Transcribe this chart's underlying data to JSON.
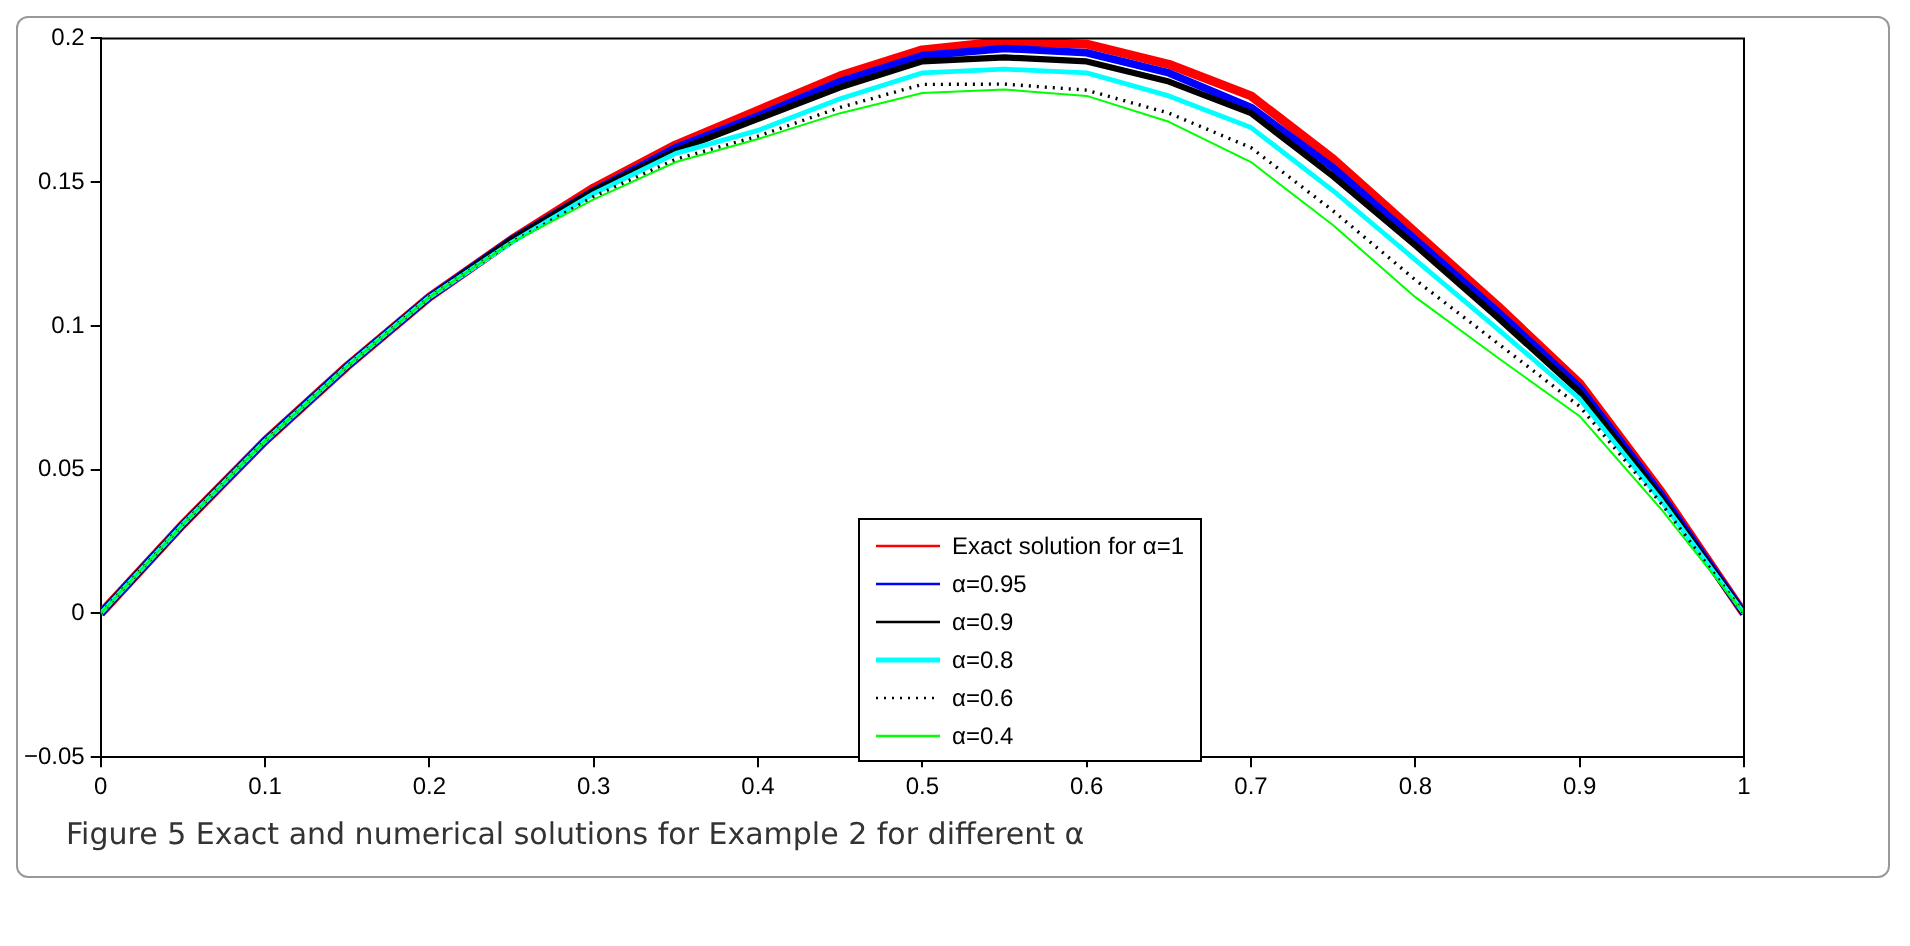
{
  "chart_data": {
    "type": "line",
    "x": [
      0,
      0.05,
      0.1,
      0.15,
      0.2,
      0.25,
      0.3,
      0.35,
      0.4,
      0.45,
      0.5,
      0.55,
      0.6,
      0.65,
      0.7,
      0.75,
      0.8,
      0.85,
      0.9,
      0.95,
      1
    ],
    "series": [
      {
        "name": "Exact solution for α=1",
        "color": "#ff0000",
        "values": [
          0,
          0.031,
          0.06,
          0.086,
          0.11,
          0.13,
          0.148,
          0.163,
          0.175,
          0.187,
          0.196,
          0.199,
          0.198,
          0.191,
          0.18,
          0.158,
          0.1325,
          0.107,
          0.08,
          0.042,
          0
        ]
      },
      {
        "name": "α=0.95",
        "color": "#0000ff",
        "values": [
          0,
          0.031,
          0.06,
          0.086,
          0.11,
          0.13,
          0.147,
          0.162,
          0.173,
          0.185,
          0.194,
          0.1965,
          0.195,
          0.188,
          0.176,
          0.155,
          0.13,
          0.105,
          0.0786,
          0.041,
          0
        ]
      },
      {
        "name": "α=0.9",
        "color": "#000000",
        "values": [
          0,
          0.031,
          0.06,
          0.086,
          0.11,
          0.13,
          0.147,
          0.161,
          0.172,
          0.183,
          0.192,
          0.1934,
          0.192,
          0.185,
          0.174,
          0.152,
          0.128,
          0.103,
          0.077,
          0.04,
          0
        ]
      },
      {
        "name": "α=0.8",
        "color": "#00ffff",
        "values": [
          0,
          0.031,
          0.06,
          0.086,
          0.11,
          0.129,
          0.146,
          0.16,
          0.168,
          0.179,
          0.188,
          0.1893,
          0.188,
          0.18,
          0.169,
          0.147,
          0.123,
          0.099,
          0.0746,
          0.039,
          0
        ]
      },
      {
        "name": "α=0.6",
        "color": "#000000",
        "line_style": "dotted",
        "values": [
          0,
          0.031,
          0.06,
          0.086,
          0.11,
          0.129,
          0.145,
          0.158,
          0.166,
          0.176,
          0.184,
          0.1841,
          0.182,
          0.174,
          0.162,
          0.14,
          0.116,
          0.094,
          0.072,
          0.038,
          0
        ]
      },
      {
        "name": "α=0.4",
        "color": "#00ff00",
        "values": [
          0,
          0.031,
          0.06,
          0.086,
          0.11,
          0.129,
          0.144,
          0.157,
          0.165,
          0.174,
          0.181,
          0.1822,
          0.18,
          0.171,
          0.157,
          0.135,
          0.11,
          0.089,
          0.0686,
          0.036,
          0
        ]
      }
    ],
    "xlim": [
      0,
      1
    ],
    "xticks": [
      0,
      0.1,
      0.2,
      0.3,
      0.4,
      0.5,
      0.6,
      0.7,
      0.8,
      0.9,
      1
    ],
    "ylim": [
      -0.05,
      0.2
    ],
    "yticks": [
      {
        "value": -0.05,
        "label": "−0.05"
      },
      0,
      0.05,
      0.1,
      0.15,
      0.2
    ],
    "grid": false,
    "legend": "bottom",
    "marker": "none",
    "line_style": "solid",
    "annotations": [
      "Figure 5  Exact and numerical solutions for Example 2 for different α"
    ]
  }
}
